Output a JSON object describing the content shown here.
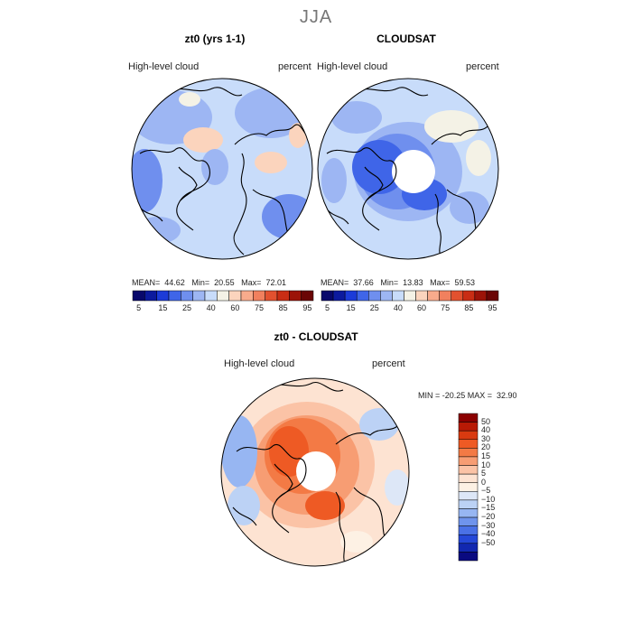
{
  "season": "JJA",
  "panels": [
    {
      "title": "zt0 (yrs 1-1)",
      "variable": "High-level cloud",
      "units": "percent",
      "stats": {
        "mean_label": "MEAN=",
        "mean": "44.62",
        "min_label": "Min=",
        "min": "20.55",
        "max_label": "Max=",
        "max": "72.01"
      }
    },
    {
      "title": "CLOUDSAT",
      "variable": "High-level cloud",
      "units": "percent",
      "stats": {
        "mean_label": "MEAN=",
        "mean": "37.66",
        "min_label": "Min=",
        "min": "13.83",
        "max_label": "Max=",
        "max": "59.53"
      }
    }
  ],
  "colorbar_top": {
    "colors": [
      "#08086b",
      "#0c1a9e",
      "#1c3bd8",
      "#3f65e8",
      "#6f8fee",
      "#9db6f3",
      "#c8dcfa",
      "#f4f2e6",
      "#fbd4bd",
      "#f8ab8c",
      "#f1805e",
      "#e2512f",
      "#c92d14",
      "#9c1308",
      "#6a0505"
    ],
    "tick_labels": [
      "5",
      "15",
      "25",
      "40",
      "60",
      "75",
      "85",
      "95"
    ]
  },
  "diff_panel": {
    "title": "zt0 - CLOUDSAT",
    "variable": "High-level cloud",
    "units": "percent",
    "minmax_text": "MIN = -20.25 MAX =  32.90"
  },
  "colorbar_diff": {
    "colors": [
      "#8b0000",
      "#b81a05",
      "#d93a10",
      "#ee5a24",
      "#f37a45",
      "#f79d73",
      "#fbc3a6",
      "#fde3d2",
      "#fdf1e4",
      "#dde7f7",
      "#bcd2f5",
      "#97b6f2",
      "#6f94ec",
      "#4a71e6",
      "#2548d8",
      "#1228b0",
      "#0a0a80"
    ],
    "tick_labels": [
      "50",
      "40",
      "30",
      "20",
      "15",
      "10",
      "5",
      "0",
      "−5",
      "−10",
      "−15",
      "−20",
      "−30",
      "−40",
      "−50"
    ]
  },
  "colors": {
    "land_outline": "#000000",
    "blank_circle": "#ffffff"
  }
}
